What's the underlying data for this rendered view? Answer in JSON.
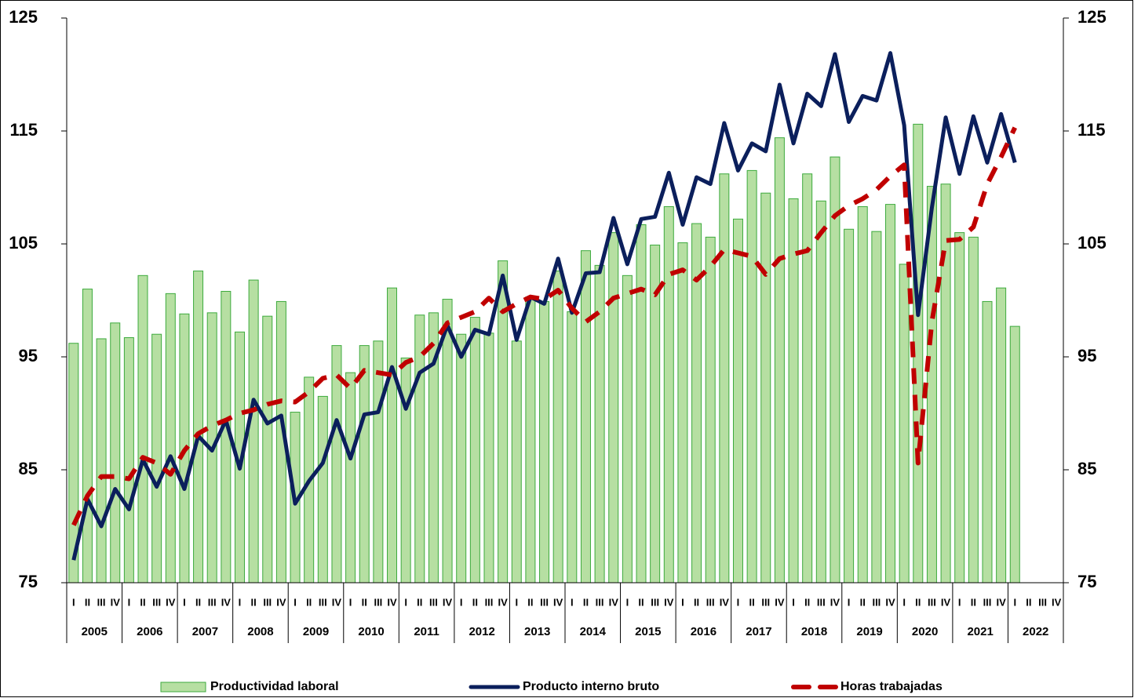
{
  "chart_data": {
    "type": "combo",
    "categories": [
      "I",
      "II",
      "III",
      "IV",
      "I",
      "II",
      "III",
      "IV",
      "I",
      "II",
      "III",
      "IV",
      "I",
      "II",
      "III",
      "IV",
      "I",
      "II",
      "III",
      "IV",
      "I",
      "II",
      "III",
      "IV",
      "I",
      "II",
      "III",
      "IV",
      "I",
      "II",
      "III",
      "IV",
      "I",
      "II",
      "III",
      "IV",
      "I",
      "II",
      "III",
      "IV",
      "I",
      "II",
      "III",
      "IV",
      "I",
      "II",
      "III",
      "IV",
      "I",
      "II",
      "III",
      "IV",
      "I",
      "II",
      "III",
      "IV",
      "I",
      "II",
      "III",
      "IV",
      "I",
      "II",
      "III",
      "IV",
      "I",
      "II",
      "III",
      "IV",
      "I",
      "II",
      "III",
      "IV"
    ],
    "groups": [
      "2005",
      "2006",
      "2007",
      "2008",
      "2009",
      "2010",
      "2011",
      "2012",
      "2013",
      "2014",
      "2015",
      "2016",
      "2017",
      "2018",
      "2019",
      "2020",
      "2021",
      "2022"
    ],
    "ylim": [
      75,
      125
    ],
    "yticks": [
      75,
      85,
      95,
      105,
      115,
      125
    ],
    "y2lim": [
      75,
      125
    ],
    "y2ticks": [
      75,
      85,
      95,
      105,
      115,
      125
    ],
    "series": [
      {
        "name": "Productividad laboral",
        "style": "bar",
        "color": "#b6dfa2",
        "edge": "#3daa3d",
        "values": [
          96.2,
          101.0,
          96.6,
          98.0,
          96.7,
          102.2,
          97.0,
          100.6,
          98.8,
          102.6,
          98.9,
          100.8,
          97.2,
          101.8,
          98.6,
          99.9,
          90.1,
          93.2,
          91.5,
          96.0,
          93.6,
          96.0,
          96.4,
          101.1,
          94.9,
          98.7,
          98.9,
          100.1,
          97.0,
          98.5,
          97.1,
          103.5,
          96.4,
          100.3,
          99.9,
          102.6,
          99.0,
          104.4,
          103.1,
          106.0,
          102.2,
          106.7,
          104.9,
          108.3,
          105.1,
          106.8,
          105.6,
          111.2,
          107.2,
          111.5,
          109.5,
          114.4,
          109.0,
          111.2,
          108.8,
          112.7,
          106.3,
          108.3,
          106.1,
          108.5,
          103.2,
          115.6,
          110.1,
          110.3,
          106.0,
          105.6,
          99.9,
          101.1,
          97.7,
          null,
          null,
          null
        ]
      },
      {
        "name": "Producto interno bruto",
        "style": "line",
        "color": "#0b1f5c",
        "values": [
          77.0,
          82.4,
          80.0,
          83.3,
          81.5,
          85.9,
          83.5,
          86.2,
          83.3,
          88.0,
          86.7,
          89.4,
          85.1,
          91.2,
          89.1,
          89.8,
          82.0,
          84.0,
          85.6,
          89.4,
          86.0,
          89.9,
          90.1,
          94.1,
          90.4,
          93.6,
          94.4,
          97.8,
          95.0,
          97.4,
          97.0,
          102.2,
          96.5,
          100.3,
          99.7,
          103.7,
          98.9,
          102.4,
          102.5,
          107.3,
          103.2,
          107.2,
          107.4,
          111.3,
          106.7,
          110.9,
          110.3,
          115.7,
          111.5,
          113.9,
          113.2,
          119.1,
          113.9,
          118.3,
          117.2,
          121.8,
          115.8,
          118.1,
          117.7,
          121.9,
          115.5,
          98.7,
          108.2,
          116.2,
          111.2,
          116.3,
          112.2,
          116.5,
          112.2,
          null,
          null,
          null
        ]
      },
      {
        "name": "Horas trabajadas",
        "style": "dash",
        "color": "#c00000",
        "values": [
          80.1,
          82.7,
          84.4,
          84.4,
          84.2,
          86.1,
          85.6,
          84.6,
          86.7,
          88.2,
          88.9,
          89.4,
          90.0,
          90.3,
          90.8,
          91.1,
          91.0,
          91.9,
          93.1,
          93.4,
          92.2,
          93.8,
          93.6,
          93.4,
          94.5,
          95.0,
          96.2,
          98.0,
          98.5,
          99.0,
          100.2,
          99.0,
          99.7,
          100.3,
          100.1,
          100.9,
          99.3,
          98.1,
          99.0,
          100.2,
          100.6,
          101.0,
          100.5,
          102.3,
          102.7,
          101.8,
          103.0,
          104.5,
          104.2,
          103.9,
          102.3,
          103.7,
          104.1,
          104.4,
          106.0,
          107.5,
          108.4,
          109.0,
          109.8,
          111.0,
          112.0,
          85.6,
          98.1,
          105.3,
          105.4,
          106.5,
          110.3,
          112.7,
          115.3,
          null,
          null,
          null
        ]
      }
    ]
  }
}
